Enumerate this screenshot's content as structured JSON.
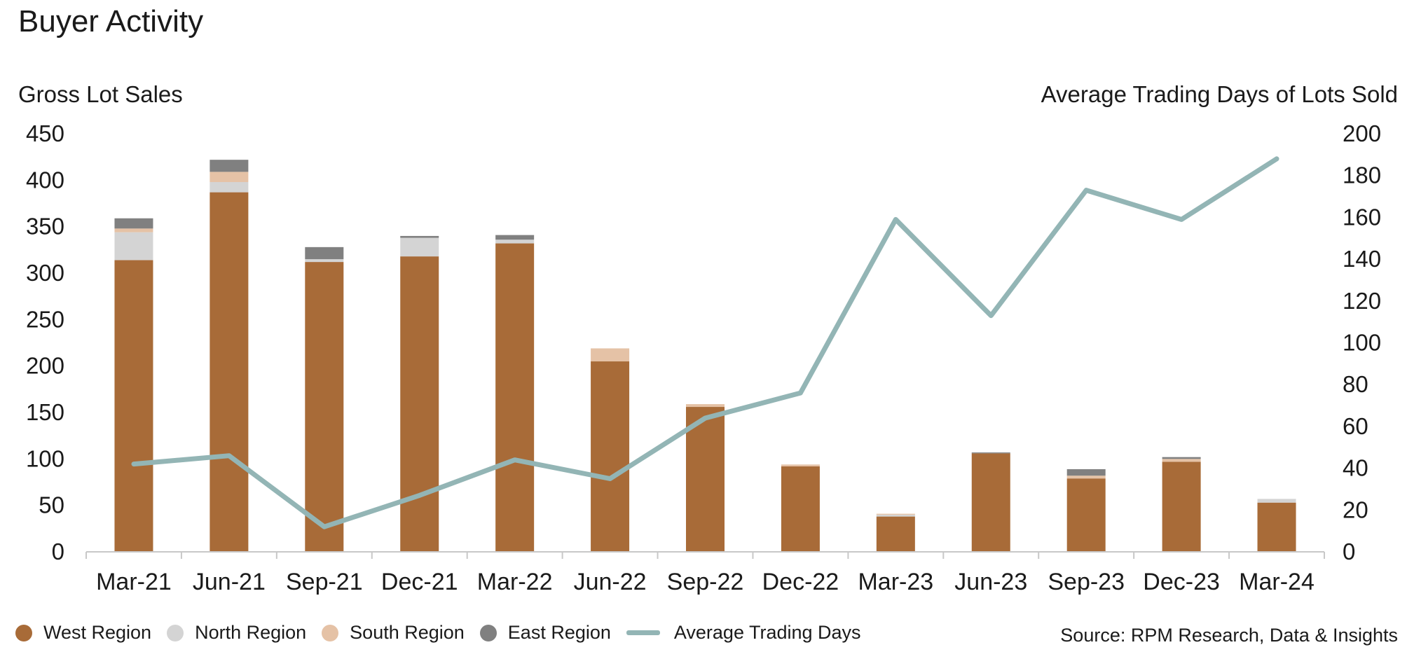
{
  "chart_data": {
    "type": "bar",
    "title": "Buyer Activity",
    "ylabel": "Gross Lot Sales",
    "y2label": "Average Trading Days of Lots Sold",
    "categories": [
      "Mar-21",
      "Jun-21",
      "Sep-21",
      "Dec-21",
      "Mar-22",
      "Jun-22",
      "Sep-22",
      "Dec-22",
      "Mar-23",
      "Jun-23",
      "Sep-23",
      "Dec-23",
      "Mar-24"
    ],
    "ylim": [
      0,
      450
    ],
    "y2lim": [
      0,
      200
    ],
    "yticks": [
      "0",
      "50",
      "100",
      "150",
      "200",
      "250",
      "300",
      "350",
      "400",
      "450"
    ],
    "y2ticks": [
      "0",
      "20",
      "40",
      "60",
      "80",
      "100",
      "120",
      "140",
      "160",
      "180",
      "200"
    ],
    "stacked": true,
    "series": [
      {
        "name": "West Region",
        "color": "#A86B38",
        "values": [
          314,
          387,
          312,
          318,
          332,
          205,
          156,
          92,
          38,
          106,
          79,
          97,
          53
        ]
      },
      {
        "name": "North Region",
        "color": "#D4D4D4",
        "values": [
          30,
          11,
          3,
          20,
          4,
          0,
          0,
          0,
          2,
          0,
          0,
          0,
          4
        ]
      },
      {
        "name": "South Region",
        "color": "#E5C2A6",
        "values": [
          4,
          11,
          0,
          0,
          0,
          14,
          3,
          2,
          1,
          0,
          3,
          3,
          0
        ]
      },
      {
        "name": "East Region",
        "color": "#808080",
        "values": [
          11,
          13,
          13,
          2,
          5,
          0,
          0,
          0,
          0,
          1,
          7,
          2,
          0
        ]
      }
    ],
    "line": {
      "name": "Average Trading Days",
      "axis": "right",
      "color": "#93B5B5",
      "values": [
        42,
        46,
        12,
        27,
        44,
        35,
        64,
        76,
        159,
        113,
        173,
        159,
        188
      ]
    },
    "grid": false,
    "legend_position": "bottom-left"
  },
  "source_text": "Source: RPM Research, Data & Insights"
}
